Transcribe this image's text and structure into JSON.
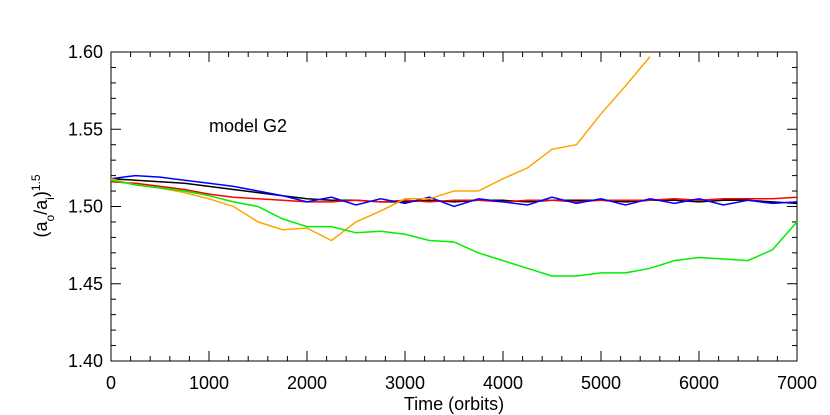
{
  "chart_data": {
    "type": "line",
    "x_label": "Time (orbits)",
    "y_label": [
      "(a",
      "o",
      "/a",
      "i",
      ")",
      "1.5"
    ],
    "annotation": "model G2",
    "x": [
      0,
      250,
      500,
      750,
      1000,
      1250,
      1500,
      1750,
      2000,
      2250,
      2500,
      2750,
      3000,
      3250,
      3500,
      3750,
      4000,
      4250,
      4500,
      4750,
      5000,
      5250,
      5500,
      5750,
      6000,
      6250,
      6500,
      6750,
      7000
    ],
    "series": [
      {
        "color": "#000000",
        "values": [
          1.518,
          1.517,
          1.516,
          1.515,
          1.513,
          1.511,
          1.509,
          1.507,
          1.505,
          1.504,
          1.504,
          1.503,
          1.503,
          1.504,
          1.503,
          1.504,
          1.504,
          1.503,
          1.504,
          1.504,
          1.504,
          1.503,
          1.504,
          1.504,
          1.503,
          1.504,
          1.504,
          1.503,
          1.502
        ]
      },
      {
        "color": "#ff0000",
        "values": [
          1.516,
          1.515,
          1.513,
          1.511,
          1.508,
          1.506,
          1.505,
          1.504,
          1.503,
          1.503,
          1.504,
          1.503,
          1.504,
          1.503,
          1.504,
          1.504,
          1.503,
          1.504,
          1.504,
          1.503,
          1.504,
          1.504,
          1.504,
          1.505,
          1.504,
          1.505,
          1.505,
          1.505,
          1.506
        ]
      },
      {
        "color": "#0000ff",
        "values": [
          1.518,
          1.52,
          1.519,
          1.517,
          1.515,
          1.513,
          1.51,
          1.507,
          1.503,
          1.506,
          1.501,
          1.505,
          1.502,
          1.506,
          1.5,
          1.505,
          1.503,
          1.501,
          1.506,
          1.502,
          1.505,
          1.501,
          1.505,
          1.502,
          1.505,
          1.501,
          1.504,
          1.502,
          1.503
        ]
      },
      {
        "color": "#ffa500",
        "values": [
          1.518,
          1.514,
          1.512,
          1.509,
          1.505,
          1.5,
          1.49,
          1.485,
          1.486,
          1.478,
          1.49,
          1.497,
          1.505,
          1.505,
          1.51,
          1.51,
          1.518,
          1.525,
          1.537,
          1.54,
          1.56,
          1.578,
          1.597,
          null,
          null,
          null,
          null,
          null,
          null
        ]
      },
      {
        "color": "#00ee00",
        "values": [
          1.517,
          1.514,
          1.512,
          1.51,
          1.507,
          1.503,
          1.5,
          1.492,
          1.487,
          1.487,
          1.483,
          1.484,
          1.482,
          1.478,
          1.477,
          1.47,
          1.465,
          1.46,
          1.455,
          1.455,
          1.457,
          1.457,
          1.46,
          1.465,
          1.467,
          1.466,
          1.465,
          1.472,
          1.49
        ]
      }
    ],
    "xlim": [
      0,
      7000
    ],
    "xticks": [
      0,
      1000,
      2000,
      3000,
      4000,
      5000,
      6000,
      7000
    ],
    "ylim": [
      1.4,
      1.6
    ],
    "yticks": [
      {
        "value": 1.4,
        "label": "1.40"
      },
      1.45,
      {
        "value": 1.5,
        "label": "1.50"
      },
      1.55,
      {
        "value": 1.6,
        "label": "1.60"
      }
    ]
  }
}
